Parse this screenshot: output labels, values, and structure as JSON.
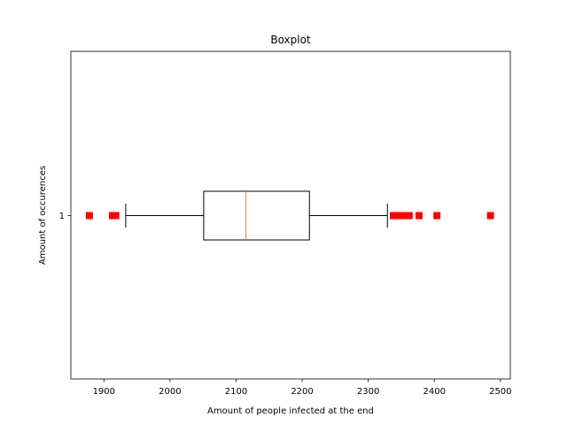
{
  "chart_data": {
    "type": "boxplot",
    "orientation": "horizontal",
    "title": "Boxplot",
    "xlabel": "Amount of people infected at the end",
    "ylabel": "Amount of occurences",
    "xlim": [
      1850,
      2515
    ],
    "xticks": [
      1900,
      2000,
      2100,
      2200,
      2300,
      2400,
      2500
    ],
    "ytick_labels": [
      "1"
    ],
    "grid": false,
    "boxes": [
      {
        "category": "1",
        "whisker_low": 1933,
        "q1": 2051,
        "median": 2115,
        "q3": 2211,
        "whisker_high": 2329,
        "outliers": [
          1878,
          1913,
          1918,
          2338,
          2343,
          2348,
          2353,
          2358,
          2362,
          2377,
          2404,
          2485
        ]
      }
    ],
    "colors": {
      "box": "#000000",
      "median": "#ff7f0e",
      "outlier": "#ff0000"
    }
  }
}
